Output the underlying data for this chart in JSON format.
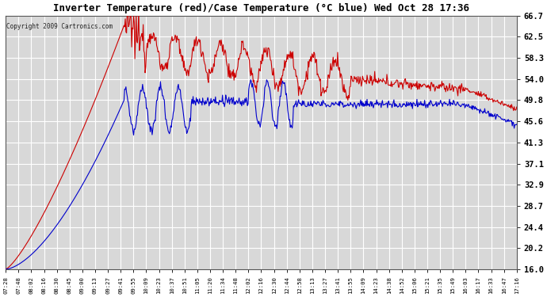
{
  "title": "Inverter Temperature (red)/Case Temperature (°C blue) Wed Oct 28 17:36",
  "copyright": "Copyright 2009 Cartronics.com",
  "ylabel_right": [
    "16.0",
    "20.2",
    "24.4",
    "28.7",
    "32.9",
    "37.1",
    "41.3",
    "45.6",
    "49.8",
    "54.0",
    "58.3",
    "62.5",
    "66.7"
  ],
  "ylim": [
    16.0,
    66.7
  ],
  "yticks": [
    16.0,
    20.2,
    24.4,
    28.7,
    32.9,
    37.1,
    41.3,
    45.6,
    49.8,
    54.0,
    58.3,
    62.5,
    66.7
  ],
  "xtick_labels": [
    "07:28",
    "07:48",
    "08:02",
    "08:16",
    "08:30",
    "08:45",
    "09:00",
    "09:13",
    "09:27",
    "09:41",
    "09:55",
    "10:09",
    "10:23",
    "10:37",
    "10:51",
    "11:05",
    "11:20",
    "11:34",
    "11:48",
    "12:02",
    "12:16",
    "12:30",
    "12:44",
    "12:58",
    "13:13",
    "13:27",
    "13:41",
    "13:55",
    "14:09",
    "14:23",
    "14:38",
    "14:52",
    "15:06",
    "15:21",
    "15:35",
    "15:49",
    "16:03",
    "16:17",
    "16:33",
    "16:47",
    "17:16"
  ],
  "bg_color": "#ffffff",
  "plot_bg_color": "#d8d8d8",
  "grid_color": "#ffffff",
  "red_color": "#cc0000",
  "blue_color": "#0000cc",
  "line_width": 0.8
}
